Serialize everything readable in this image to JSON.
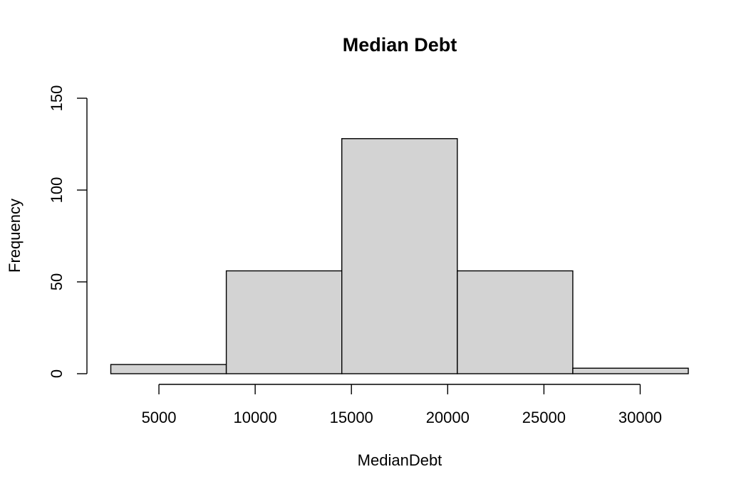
{
  "chart_data": {
    "type": "bar",
    "title": "Median Debt",
    "xlabel": "MedianDebt",
    "ylabel": "Frequency",
    "bins": [
      {
        "x0": 2500,
        "x1": 8500,
        "value": 5
      },
      {
        "x0": 8500,
        "x1": 14500,
        "value": 56
      },
      {
        "x0": 14500,
        "x1": 20500,
        "value": 128
      },
      {
        "x0": 20500,
        "x1": 26500,
        "value": 56
      },
      {
        "x0": 26500,
        "x1": 32500,
        "value": 3
      }
    ],
    "xlim": [
      2500,
      32500
    ],
    "ylim": [
      0,
      150
    ],
    "xticks": [
      5000,
      10000,
      15000,
      20000,
      25000,
      30000
    ],
    "yticks": [
      0,
      50,
      100,
      150
    ],
    "bar_color": "#d3d3d3",
    "edge_color": "#000000",
    "grid": false,
    "legend": "none"
  }
}
